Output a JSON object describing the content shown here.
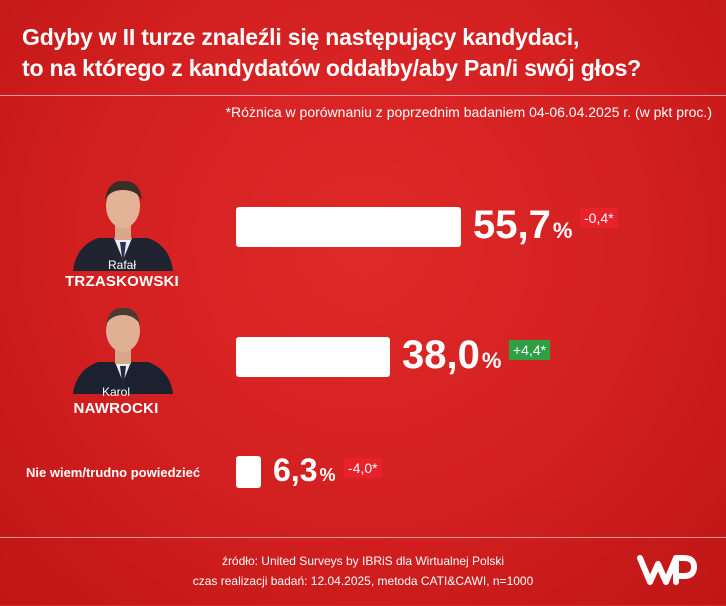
{
  "title_line1": "Gdyby w II turze znaleźli się następujący kandydaci,",
  "title_line2": "to na którego z kandydatów oddałby/aby Pan/i swój głos?",
  "note": "*Różnica w porównaniu z poprzednim badaniem 04-06.04.2025 r. (w pkt proc.)",
  "candidates": [
    {
      "first_name": "Rafał",
      "last_name": "TRZASKOWSKI",
      "value_label": "55,7",
      "pct": "%",
      "change": "-0,4*"
    },
    {
      "first_name": "Karol",
      "last_name": "NAWROCKI",
      "value_label": "38,0",
      "pct": "%",
      "change": "+4,4*"
    }
  ],
  "other": {
    "label": "Nie wiem/trudno powiedzieć",
    "value_label": "6,3",
    "pct": "%",
    "change": "-4,0*"
  },
  "colors": {
    "background": "#dc2626",
    "bar": "#ffffff",
    "change_negative": "#e8212a",
    "change_positive": "#2ea043"
  },
  "chart_data": {
    "type": "bar",
    "orientation": "horizontal",
    "categories": [
      "Rafał TRZASKOWSKI",
      "Karol NAWROCKI",
      "Nie wiem/trudno powiedzieć"
    ],
    "values": [
      55.7,
      38.0,
      6.3
    ],
    "changes": [
      -0.4,
      4.4,
      -4.0
    ],
    "title": "Gdyby w II turze znaleźli się następujący kandydaci, to na którego z kandydatów oddałby/aby Pan/i swój głos?",
    "unit": "%"
  },
  "footer": {
    "source": "źródło: United Surveys by IBRiS dla Wirtualnej Polski",
    "details": "czas realizacji badań: 12.04.2025, metoda CATI&CAWI, n=1000"
  },
  "logo_icon": "wp-logo-icon"
}
